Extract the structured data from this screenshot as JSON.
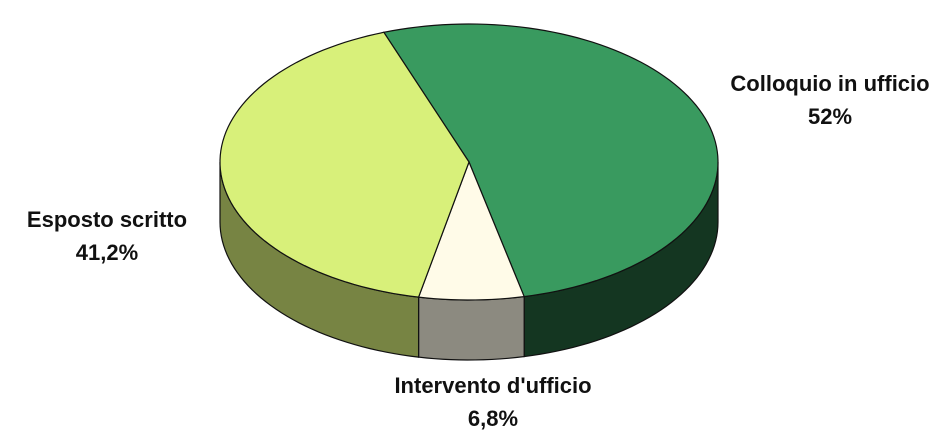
{
  "chart_data": {
    "type": "pie",
    "categories": [
      "Colloquio in ufficio",
      "Intervento d'ufficio",
      "Esposto scritto"
    ],
    "values": [
      52,
      6.8,
      41.2
    ],
    "value_labels": [
      "52%",
      "6,8%",
      "41,2%"
    ],
    "colors": [
      "#399a5f",
      "#fffbe8",
      "#d8f07a"
    ]
  }
}
